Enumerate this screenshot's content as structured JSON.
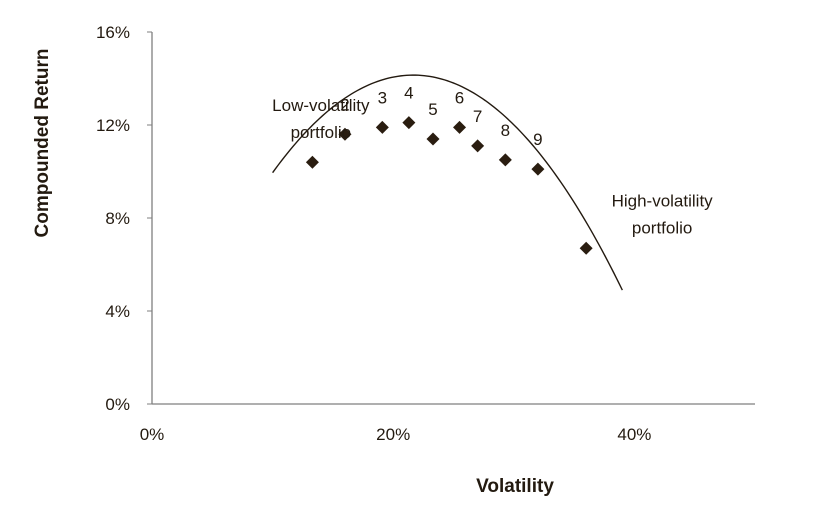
{
  "chart_data": {
    "type": "scatter",
    "xlabel": "Volatility",
    "ylabel": "Compounded Return",
    "xlim": [
      0,
      50
    ],
    "ylim": [
      0,
      16
    ],
    "x_ticks": [
      {
        "value": 0,
        "label": "0%"
      },
      {
        "value": 20,
        "label": "20%"
      },
      {
        "value": 40,
        "label": "40%"
      }
    ],
    "y_ticks": [
      {
        "value": 0,
        "label": "0%"
      },
      {
        "value": 4,
        "label": "4%"
      },
      {
        "value": 8,
        "label": "8%"
      },
      {
        "value": 12,
        "label": "12%"
      },
      {
        "value": 16,
        "label": "16%"
      }
    ],
    "points": [
      {
        "x": 13.3,
        "y": 10.4,
        "label": ""
      },
      {
        "x": 16.0,
        "y": 11.6,
        "label": "2"
      },
      {
        "x": 19.1,
        "y": 11.9,
        "label": "3"
      },
      {
        "x": 21.3,
        "y": 12.1,
        "label": "4"
      },
      {
        "x": 23.3,
        "y": 11.4,
        "label": "5"
      },
      {
        "x": 25.5,
        "y": 11.9,
        "label": "6"
      },
      {
        "x": 27.0,
        "y": 11.1,
        "label": "7"
      },
      {
        "x": 29.3,
        "y": 10.5,
        "label": "8"
      },
      {
        "x": 32.0,
        "y": 10.1,
        "label": "9"
      },
      {
        "x": 36.0,
        "y": 6.7,
        "label": ""
      }
    ],
    "fit_curve": {
      "x_range": [
        10,
        39
      ],
      "coefficients": [
        -0.32,
        1.335,
        -0.0308
      ]
    },
    "annotations": [
      {
        "id": "low",
        "lines": [
          "Low-volatility",
          "portfolio"
        ],
        "x": 14,
        "y": 12.6
      },
      {
        "id": "high",
        "lines": [
          "High-volatility",
          "portfolio"
        ],
        "x": 42.3,
        "y": 8.5
      }
    ],
    "grid": false,
    "legend": "none",
    "colors": {
      "marker": "#2a1d10",
      "line": "#231a10",
      "axis": "#7f7f7f",
      "text": "#231a10"
    }
  }
}
